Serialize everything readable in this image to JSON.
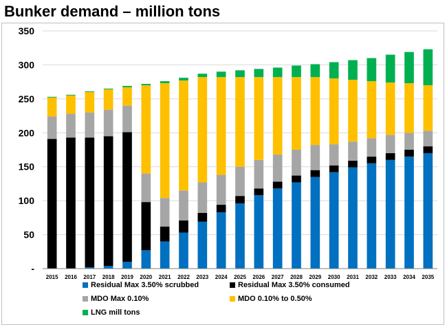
{
  "title": "Bunker demand – million tons",
  "colors": {
    "residual_scrubbed": "#0070c0",
    "residual_consumed": "#000000",
    "mdo_max": "#a6a6a6",
    "mdo_range": "#ffc000",
    "lng": "#00b050"
  },
  "chart_data": {
    "type": "bar",
    "stacked": true,
    "title": "Bunker demand – million tons",
    "categories": [
      "2015",
      "2016",
      "2017",
      "2018",
      "2019",
      "2020",
      "2021",
      "2022",
      "2023",
      "2024",
      "2025",
      "2026",
      "2027",
      "2028",
      "2029",
      "2030",
      "2031",
      "2032",
      "2033",
      "2034",
      "2035"
    ],
    "y_ticks": [
      "-",
      "50",
      "100",
      "150",
      "200",
      "250",
      "300",
      "350"
    ],
    "ylim": [
      0,
      350
    ],
    "grid": true,
    "legend_position": "bottom",
    "series": [
      {
        "name": "Residual Max 3.50% scrubbed",
        "color_key": "residual_scrubbed",
        "values": [
          0,
          0,
          2,
          4,
          10,
          27,
          40,
          53,
          69,
          83,
          96,
          108,
          118,
          127,
          135,
          142,
          149,
          155,
          160,
          165,
          170
        ]
      },
      {
        "name": "Residual Max 3.50% consumed",
        "color_key": "residual_consumed",
        "values": [
          191,
          193,
          191,
          191,
          191,
          71,
          22,
          18,
          13,
          11,
          11,
          10,
          10,
          10,
          10,
          10,
          10,
          10,
          10,
          10,
          10
        ]
      },
      {
        "name": "MDO Max 0.10%",
        "color_key": "mdo_max",
        "values": [
          33,
          35,
          37,
          39,
          39,
          42,
          42,
          44,
          45,
          44,
          43,
          42,
          40,
          38,
          37,
          31,
          28,
          27,
          27,
          25,
          23
        ]
      },
      {
        "name": "MDO 0.10% to 0.50%",
        "color_key": "mdo_range",
        "values": [
          28,
          27,
          30,
          30,
          27,
          130,
          169,
          162,
          155,
          144,
          132,
          122,
          114,
          107,
          100,
          97,
          91,
          84,
          77,
          73,
          67
        ]
      },
      {
        "name": "LNG mill tons",
        "color_key": "lng",
        "values": [
          1,
          1,
          1,
          1,
          2,
          2,
          3,
          4,
          5,
          8,
          10,
          12,
          14,
          17,
          19,
          24,
          29,
          34,
          41,
          46,
          53
        ]
      }
    ]
  }
}
